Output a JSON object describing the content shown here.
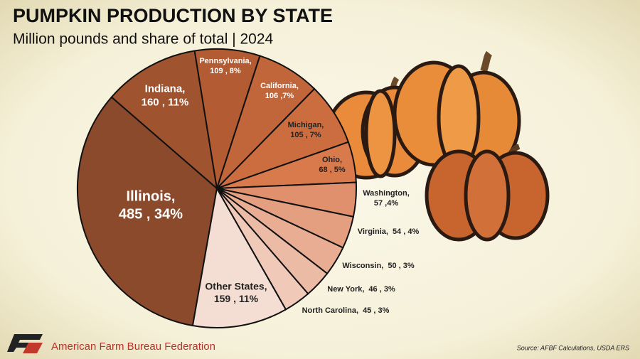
{
  "chart_data": {
    "type": "pie",
    "title": "PUMPKIN PRODUCTION BY STATE",
    "subtitle": "Million pounds and share of total | 2024",
    "categories": [
      "Illinois,",
      "Indiana,",
      "Pennsylvania,",
      "California,",
      "Michigan,",
      "Ohio,",
      "Washington,",
      "Virginia,",
      "Wisconsin,",
      "New York,",
      "North Carolina,",
      "Other States,"
    ],
    "values": [
      485,
      160,
      109,
      106,
      105,
      68,
      57,
      54,
      50,
      46,
      45,
      159
    ],
    "value_labels": [
      "485 , 34%",
      "160 , 11%",
      "109 , 8%",
      "106 ,7%",
      "105 , 7%",
      "68 , 5%",
      "57 ,4%",
      "54 , 4%",
      "50 , 3%",
      "46 , 3%",
      "45 , 3%",
      "159 , 11%"
    ],
    "colors": [
      "#8b4a2b",
      "#a0532f",
      "#b35c33",
      "#c1653a",
      "#cc6d40",
      "#d97a4c",
      "#e0906d",
      "#e39f80",
      "#e8ad92",
      "#ecbba5",
      "#f0c9b8",
      "#f4ddd2"
    ],
    "source": "Source: AFBF Calculations, USDA ERS"
  },
  "footer": {
    "organization": "American Farm Bureau Federation"
  }
}
